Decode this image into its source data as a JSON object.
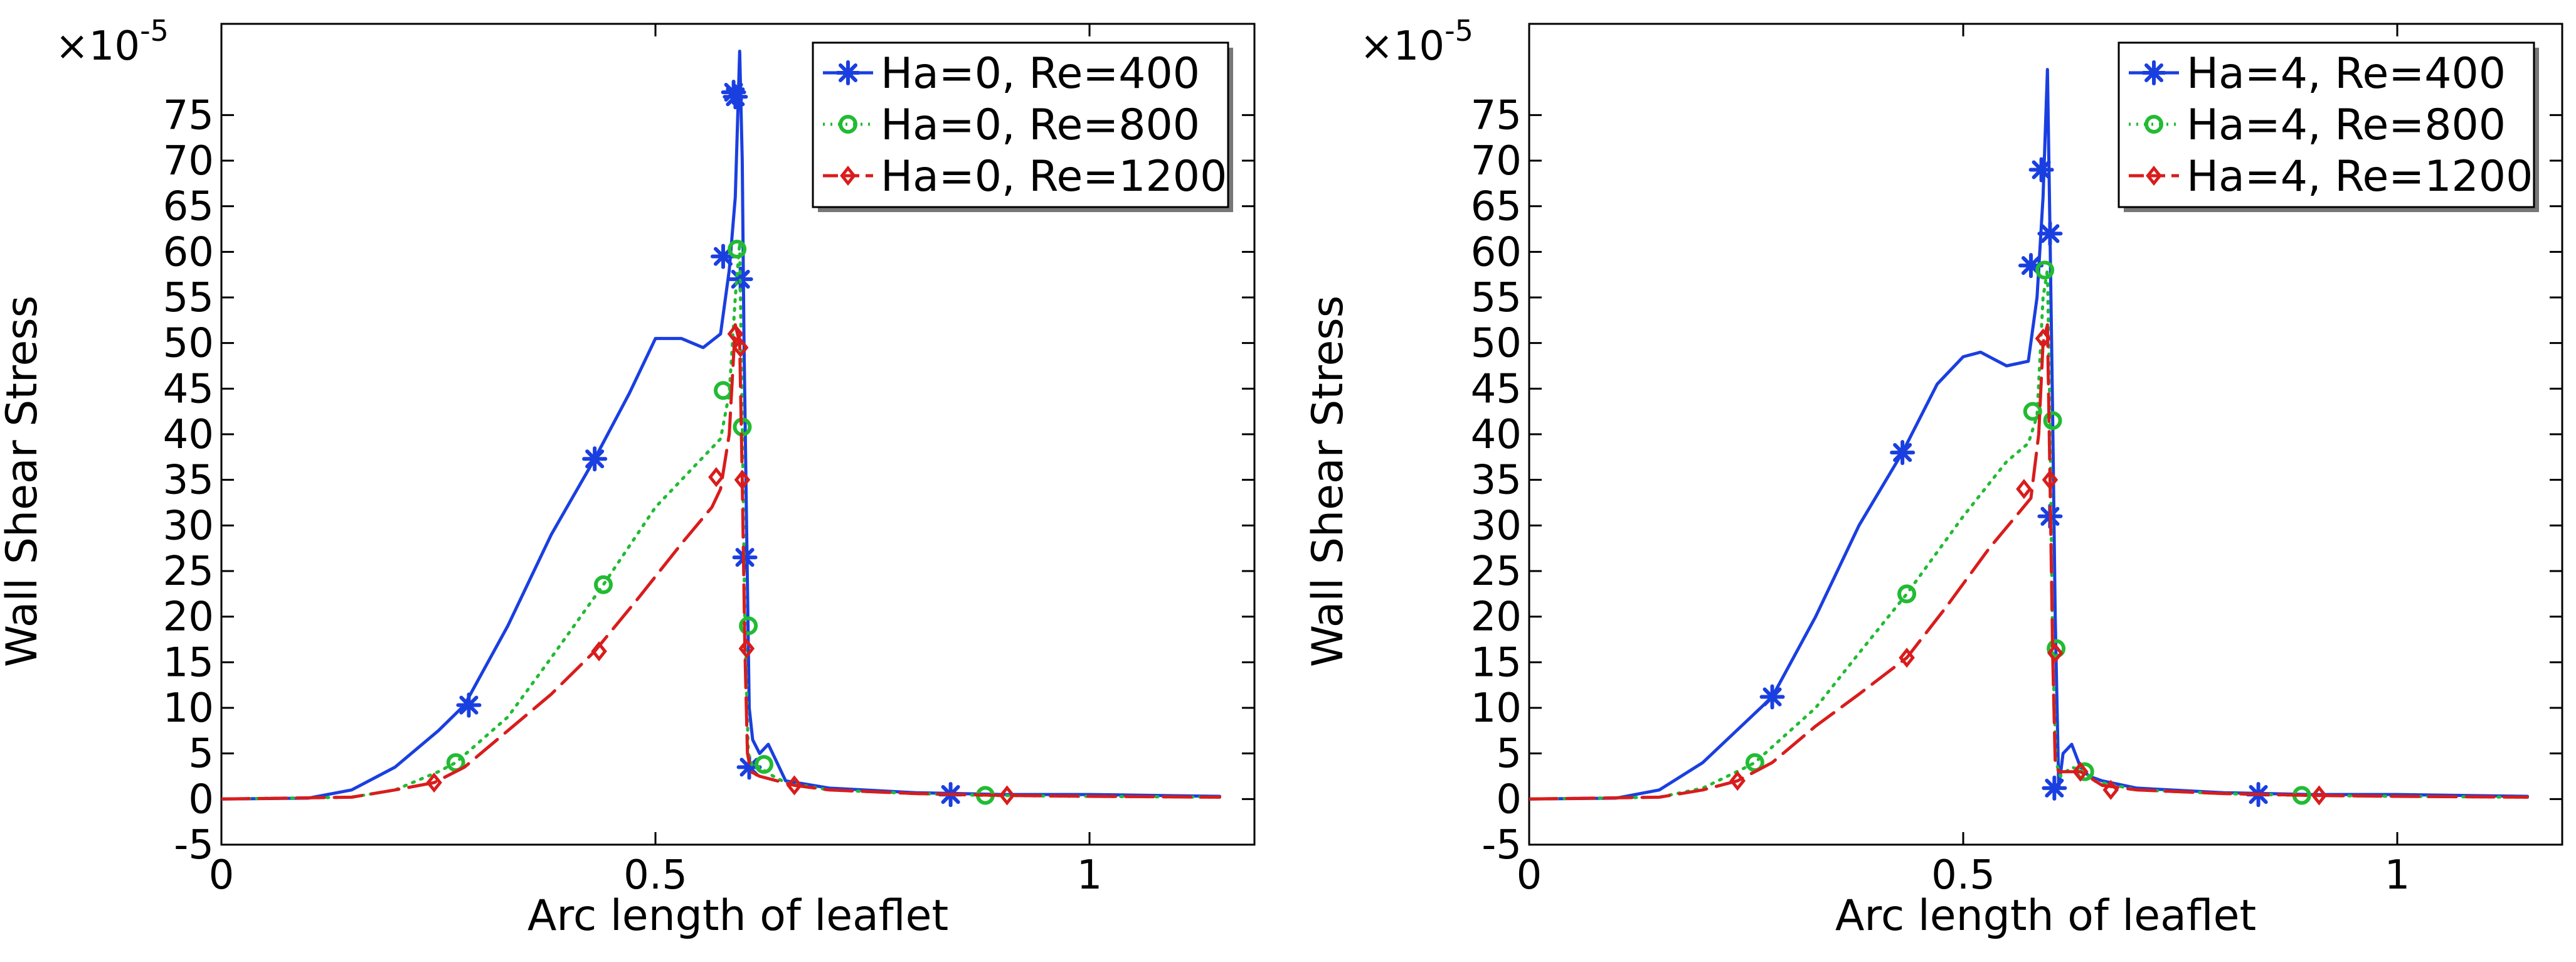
{
  "colors": {
    "re400": "#1a3fe0",
    "re800": "#22bb33",
    "re1200": "#d91c1c",
    "axis": "#000000",
    "background": "#ffffff"
  },
  "chart_data": [
    {
      "type": "line",
      "title": "",
      "xlabel": "Arc length of leaflet",
      "ylabel": "Wall Shear Stress",
      "y_multiplier": "×10",
      "y_exponent": "-5",
      "xlim": [
        0,
        1.19
      ],
      "ylim": [
        -5,
        85
      ],
      "x_ticks": [
        0,
        0.5,
        1
      ],
      "x_tick_labels": [
        "0",
        "0.5",
        "1"
      ],
      "y_ticks": [
        -5,
        0,
        5,
        10,
        15,
        20,
        25,
        30,
        35,
        40,
        45,
        50,
        55,
        60,
        65,
        70,
        75
      ],
      "y_tick_labels": [
        "-5",
        "0",
        "5",
        "10",
        "15",
        "20",
        "25",
        "30",
        "35",
        "40",
        "45",
        "50",
        "55",
        "60",
        "65",
        "70",
        "75"
      ],
      "legend_position": "top-right",
      "series": [
        {
          "name": "Ha=0, Re=400",
          "color_key": "re400",
          "line": "solid",
          "marker": "asterisk",
          "x": [
            0,
            0.1,
            0.15,
            0.2,
            0.25,
            0.28,
            0.33,
            0.38,
            0.43,
            0.47,
            0.5,
            0.53,
            0.555,
            0.575,
            0.585,
            0.592,
            0.597,
            0.6,
            0.602,
            0.605,
            0.608,
            0.612,
            0.62,
            0.63,
            0.64,
            0.65,
            0.7,
            0.8,
            0.9,
            1.0,
            1.15
          ],
          "y": [
            0,
            0.1,
            1,
            3.5,
            7.5,
            10.3,
            19,
            29,
            37.3,
            44.5,
            50.5,
            50.5,
            49.5,
            51,
            58,
            66,
            82,
            70,
            50,
            30,
            10,
            6.5,
            5,
            6,
            4,
            2,
            1.2,
            0.7,
            0.5,
            0.5,
            0.3
          ],
          "markers_x": [
            0.285,
            0.43,
            0.578,
            0.59,
            0.592,
            0.598,
            0.603,
            0.608,
            0.84
          ],
          "markers_y": [
            10.3,
            37.3,
            59.5,
            77.5,
            77.0,
            57.0,
            26.5,
            3.5,
            0.5
          ]
        },
        {
          "name": "Ha=0, Re=800",
          "color_key": "re800",
          "line": "dotted",
          "marker": "circle",
          "x": [
            0,
            0.15,
            0.2,
            0.25,
            0.27,
            0.33,
            0.38,
            0.44,
            0.5,
            0.55,
            0.575,
            0.585,
            0.592,
            0.597,
            0.6,
            0.603,
            0.607,
            0.612,
            0.62,
            0.63,
            0.65,
            0.7,
            0.8,
            0.88,
            1.0,
            1.15
          ],
          "y": [
            0,
            0.2,
            1,
            3,
            4,
            9,
            15.5,
            23.5,
            32,
            37,
            39.5,
            44.5,
            55,
            61,
            41,
            19,
            5,
            3.5,
            3.5,
            2.8,
            1.8,
            1,
            0.6,
            0.4,
            0.3,
            0.2
          ],
          "markers_x": [
            0.27,
            0.44,
            0.578,
            0.594,
            0.6,
            0.607,
            0.625,
            0.88
          ],
          "markers_y": [
            4,
            23.5,
            44.8,
            60.3,
            40.8,
            19,
            3.8,
            0.4
          ]
        },
        {
          "name": "Ha=0, Re=1200",
          "color_key": "re1200",
          "line": "dashed",
          "marker": "diamond",
          "x": [
            0,
            0.15,
            0.2,
            0.245,
            0.28,
            0.33,
            0.38,
            0.43,
            0.48,
            0.53,
            0.565,
            0.575,
            0.585,
            0.592,
            0.597,
            0.6,
            0.603,
            0.606,
            0.61,
            0.62,
            0.64,
            0.66,
            0.7,
            0.8,
            0.9,
            1.0,
            1.15
          ],
          "y": [
            0,
            0.2,
            1,
            1.8,
            3.5,
            7.5,
            11.5,
            16.2,
            22,
            28,
            32,
            34,
            40,
            52,
            50,
            35,
            16.5,
            5,
            3,
            2.5,
            2,
            1.5,
            1,
            0.6,
            0.4,
            0.3,
            0.2
          ],
          "markers_x": [
            0.245,
            0.435,
            0.57,
            0.592,
            0.598,
            0.6,
            0.605,
            0.66,
            0.905
          ],
          "markers_y": [
            1.8,
            16.2,
            35.3,
            51,
            49.5,
            35,
            16.5,
            1.5,
            0.4
          ]
        }
      ]
    },
    {
      "type": "line",
      "title": "",
      "xlabel": "Arc length of leaflet",
      "ylabel": "Wall Shear Stress",
      "y_multiplier": "×10",
      "y_exponent": "-5",
      "xlim": [
        0,
        1.19
      ],
      "ylim": [
        -5,
        85
      ],
      "x_ticks": [
        0,
        0.5,
        1
      ],
      "x_tick_labels": [
        "0",
        "0.5",
        "1"
      ],
      "y_ticks": [
        -5,
        0,
        5,
        10,
        15,
        20,
        25,
        30,
        35,
        40,
        45,
        50,
        55,
        60,
        65,
        70,
        75
      ],
      "y_tick_labels": [
        "-5",
        "0",
        "5",
        "10",
        "15",
        "20",
        "25",
        "30",
        "35",
        "40",
        "45",
        "50",
        "55",
        "60",
        "65",
        "70",
        "75"
      ],
      "legend_position": "top-right",
      "series": [
        {
          "name": "Ha=4, Re=400",
          "color_key": "re400",
          "line": "solid",
          "marker": "asterisk",
          "x": [
            0,
            0.1,
            0.15,
            0.2,
            0.25,
            0.28,
            0.33,
            0.38,
            0.43,
            0.47,
            0.5,
            0.52,
            0.55,
            0.575,
            0.585,
            0.592,
            0.597,
            0.6,
            0.603,
            0.606,
            0.61,
            0.615,
            0.625,
            0.635,
            0.645,
            0.66,
            0.7,
            0.8,
            0.9,
            1.0,
            1.15
          ],
          "y": [
            0,
            0.1,
            1,
            4,
            8.5,
            11.2,
            20,
            30,
            38,
            45.5,
            48.5,
            49,
            47.5,
            48,
            55,
            66,
            80,
            62,
            42,
            20,
            1.2,
            5,
            6,
            3.5,
            2.5,
            2,
            1.2,
            0.7,
            0.5,
            0.5,
            0.3
          ],
          "markers_x": [
            0.28,
            0.43,
            0.578,
            0.59,
            0.6,
            0.6,
            0.605,
            0.84
          ],
          "markers_y": [
            11.2,
            38,
            58.5,
            69,
            62,
            31,
            1.2,
            0.5
          ]
        },
        {
          "name": "Ha=4, Re=800",
          "color_key": "re800",
          "line": "dotted",
          "marker": "circle",
          "x": [
            0,
            0.15,
            0.2,
            0.25,
            0.26,
            0.33,
            0.38,
            0.435,
            0.5,
            0.55,
            0.575,
            0.585,
            0.592,
            0.597,
            0.6,
            0.603,
            0.607,
            0.612,
            0.625,
            0.64,
            0.65,
            0.7,
            0.8,
            0.89,
            1.0,
            1.15
          ],
          "y": [
            0,
            0.2,
            1.2,
            3.5,
            4,
            10,
            16,
            22.5,
            31,
            37,
            39,
            42,
            55,
            58,
            41.5,
            16.5,
            4,
            2.5,
            3.5,
            3,
            2,
            1,
            0.6,
            0.4,
            0.3,
            0.2
          ],
          "markers_x": [
            0.26,
            0.435,
            0.58,
            0.594,
            0.603,
            0.607,
            0.64,
            0.89
          ],
          "markers_y": [
            4,
            22.5,
            42.5,
            58,
            41.5,
            16.5,
            3,
            0.4
          ]
        },
        {
          "name": "Ha=4, Re=1200",
          "color_key": "re1200",
          "line": "dashed",
          "marker": "diamond",
          "x": [
            0,
            0.15,
            0.2,
            0.24,
            0.28,
            0.33,
            0.38,
            0.435,
            0.48,
            0.53,
            0.565,
            0.578,
            0.587,
            0.592,
            0.597,
            0.6,
            0.603,
            0.606,
            0.61,
            0.62,
            0.635,
            0.66,
            0.7,
            0.8,
            0.9,
            1.0,
            1.15
          ],
          "y": [
            0,
            0.2,
            1,
            2,
            4,
            8,
            11.5,
            15.5,
            21,
            27.5,
            31.5,
            33,
            40,
            50,
            52,
            35,
            16,
            4,
            3,
            3,
            3,
            1.5,
            1,
            0.6,
            0.4,
            0.3,
            0.2
          ],
          "markers_x": [
            0.24,
            0.435,
            0.57,
            0.592,
            0.6,
            0.606,
            0.635,
            0.67,
            0.91
          ],
          "markers_y": [
            2,
            15.5,
            34,
            50.5,
            35,
            16,
            3,
            1,
            0.4
          ]
        }
      ]
    }
  ]
}
